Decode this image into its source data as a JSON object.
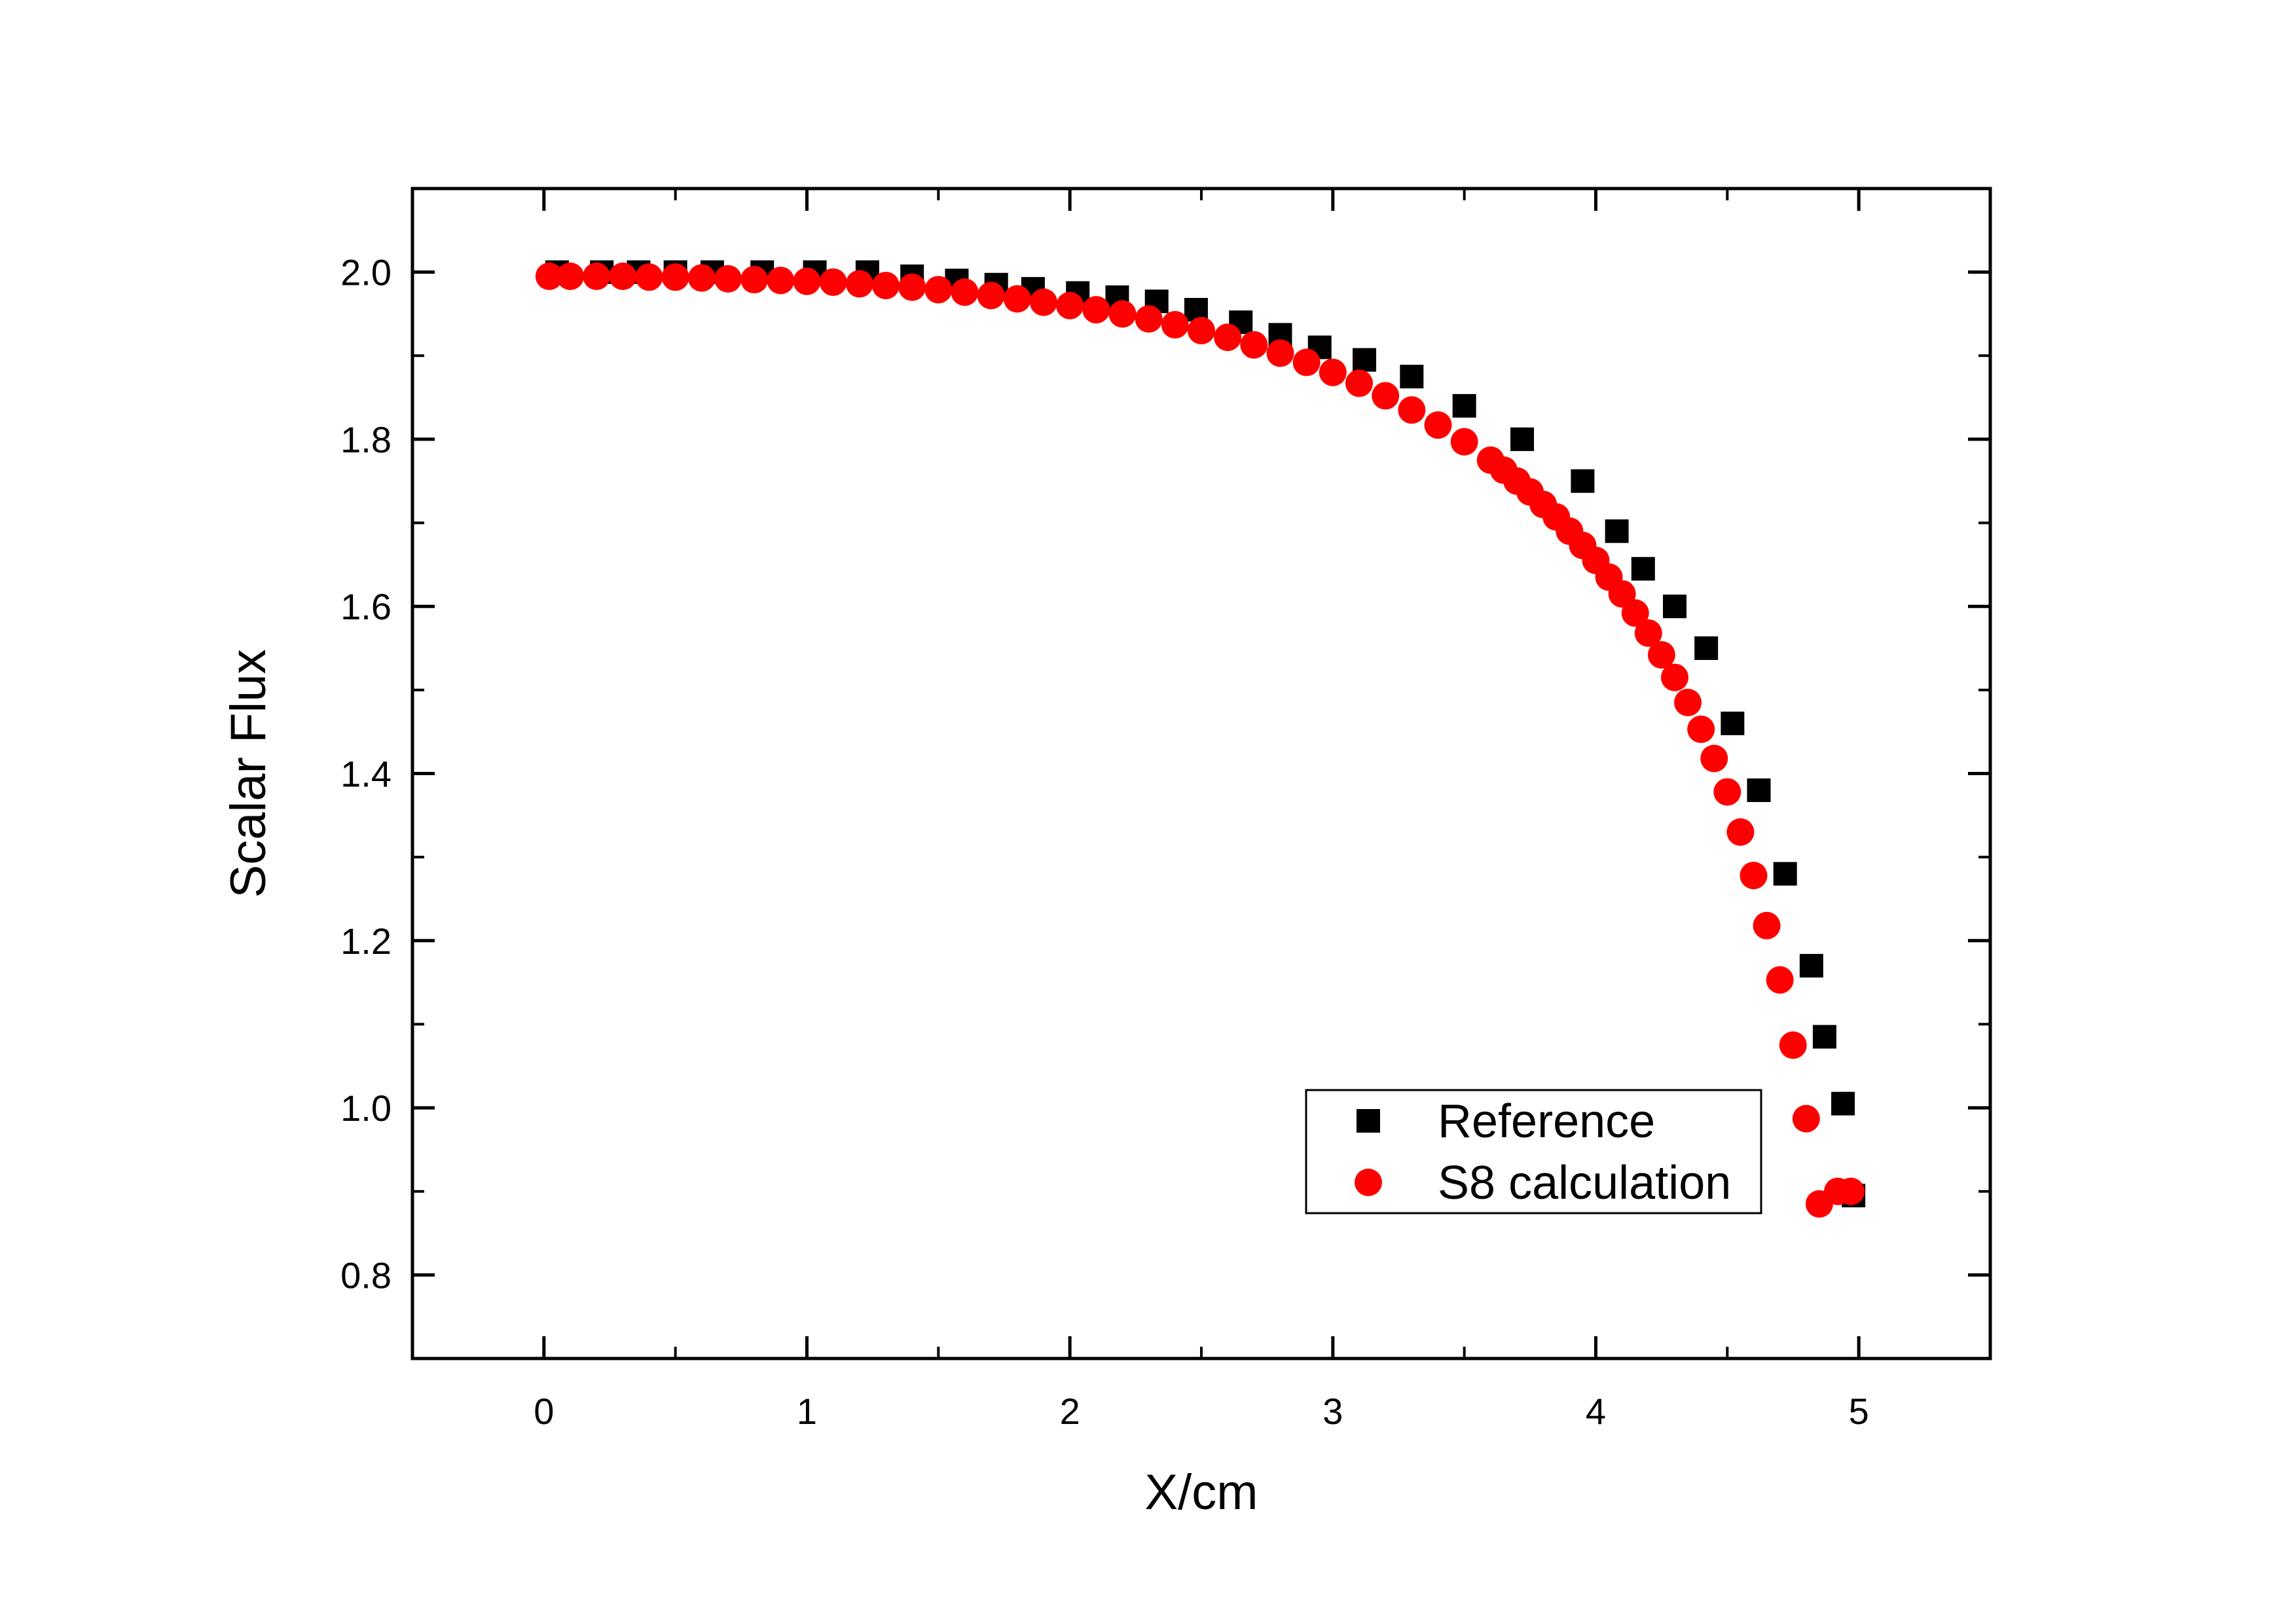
{
  "chart_data": {
    "type": "scatter",
    "xlabel": "X/cm",
    "ylabel": "Scalar Flux",
    "xlim": [
      -0.5,
      5.5
    ],
    "ylim": [
      0.7,
      2.1
    ],
    "xticks": [
      "0",
      "1",
      "2",
      "3",
      "4",
      "5"
    ],
    "yticks": [
      "0.8",
      "1.0",
      "1.2",
      "1.4",
      "1.6",
      "1.8",
      "2.0"
    ],
    "grid": false,
    "legend": "bottom-right",
    "series": [
      {
        "name": "Reference",
        "marker": "square",
        "color": "#000000",
        "x": [
          0.05,
          0.22,
          0.36,
          0.5,
          0.64,
          0.83,
          1.03,
          1.23,
          1.4,
          1.57,
          1.72,
          1.86,
          2.03,
          2.18,
          2.33,
          2.48,
          2.65,
          2.8,
          2.95,
          3.12,
          3.3,
          3.5,
          3.72,
          3.95,
          4.08,
          4.18,
          4.3,
          4.42,
          4.52,
          4.62,
          4.72,
          4.82,
          4.87,
          4.94,
          4.98
        ],
        "y": [
          2.0,
          2.0,
          2.0,
          2.0,
          2.0,
          2.0,
          2.0,
          2.0,
          1.995,
          1.99,
          1.985,
          1.98,
          1.975,
          1.97,
          1.965,
          1.955,
          1.94,
          1.925,
          1.91,
          1.895,
          1.875,
          1.84,
          1.8,
          1.75,
          1.69,
          1.645,
          1.6,
          1.55,
          1.46,
          1.38,
          1.28,
          1.17,
          1.085,
          1.005,
          0.895
        ]
      },
      {
        "name": "S8 calculation",
        "marker": "circle",
        "color": "#ff0000",
        "x": [
          0.02,
          0.1,
          0.2,
          0.3,
          0.4,
          0.5,
          0.6,
          0.7,
          0.8,
          0.9,
          1.0,
          1.1,
          1.2,
          1.3,
          1.4,
          1.5,
          1.6,
          1.7,
          1.8,
          1.9,
          2.0,
          2.1,
          2.2,
          2.3,
          2.4,
          2.5,
          2.6,
          2.7,
          2.8,
          2.9,
          3.0,
          3.1,
          3.2,
          3.3,
          3.4,
          3.5,
          3.6,
          3.65,
          3.7,
          3.75,
          3.8,
          3.85,
          3.9,
          3.95,
          4.0,
          4.05,
          4.1,
          4.15,
          4.2,
          4.25,
          4.3,
          4.35,
          4.4,
          4.45,
          4.5,
          4.55,
          4.6,
          4.65,
          4.7,
          4.75,
          4.8,
          4.85,
          4.92,
          4.97
        ],
        "y": [
          1.995,
          1.995,
          1.995,
          1.995,
          1.994,
          1.994,
          1.993,
          1.992,
          1.991,
          1.99,
          1.989,
          1.988,
          1.986,
          1.984,
          1.982,
          1.979,
          1.976,
          1.972,
          1.968,
          1.964,
          1.96,
          1.955,
          1.95,
          1.944,
          1.937,
          1.93,
          1.922,
          1.913,
          1.903,
          1.892,
          1.88,
          1.867,
          1.852,
          1.835,
          1.817,
          1.797,
          1.775,
          1.763,
          1.75,
          1.737,
          1.722,
          1.707,
          1.69,
          1.673,
          1.655,
          1.635,
          1.615,
          1.592,
          1.568,
          1.542,
          1.515,
          1.485,
          1.453,
          1.418,
          1.378,
          1.33,
          1.278,
          1.218,
          1.153,
          1.075,
          0.987,
          0.885,
          0.9,
          0.9
        ]
      }
    ]
  }
}
